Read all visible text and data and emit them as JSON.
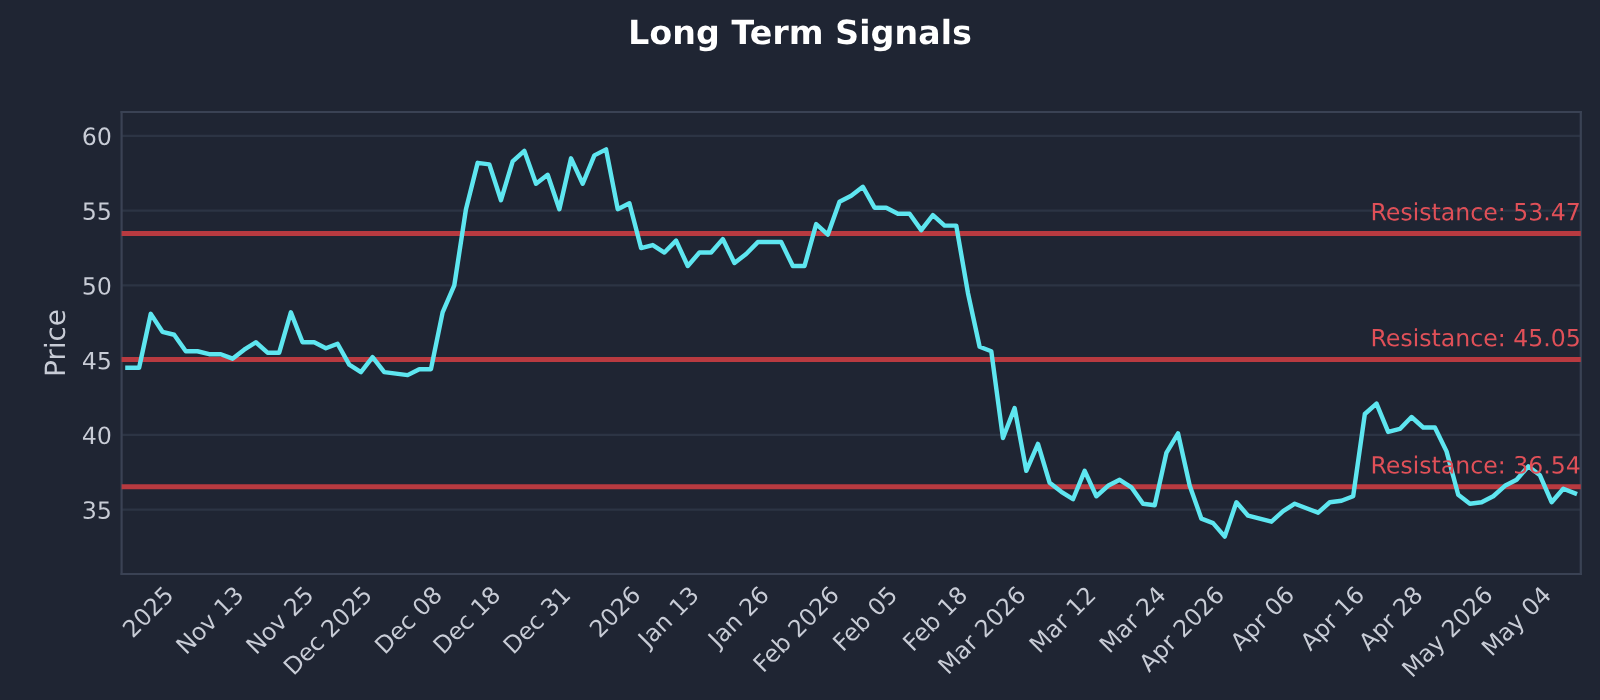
{
  "chart_data": {
    "type": "line",
    "title": "Long Term Signals",
    "ylabel": "Price",
    "categories": [
      null,
      null,
      null,
      "2025",
      null,
      null,
      null,
      null,
      null,
      "Nov 13",
      null,
      null,
      null,
      null,
      null,
      "Nov 25",
      null,
      null,
      null,
      null,
      "Dec 2025",
      null,
      null,
      null,
      null,
      null,
      "Dec 08",
      null,
      null,
      null,
      null,
      "Dec 18",
      null,
      null,
      null,
      null,
      null,
      "Dec 31",
      null,
      null,
      null,
      null,
      null,
      "2026",
      null,
      null,
      null,
      null,
      "Jan 13",
      null,
      null,
      null,
      null,
      null,
      "Jan 26",
      null,
      null,
      null,
      null,
      null,
      "Feb 2026",
      null,
      null,
      null,
      null,
      "Feb 05",
      null,
      null,
      null,
      null,
      null,
      "Feb 18",
      null,
      null,
      null,
      null,
      "Mar 2026",
      null,
      null,
      null,
      null,
      null,
      "Mar 12",
      null,
      null,
      null,
      null,
      null,
      "Mar 24",
      null,
      null,
      null,
      null,
      "Apr 2026",
      null,
      null,
      null,
      null,
      null,
      "Apr 06",
      null,
      null,
      null,
      null,
      null,
      "Apr 16",
      null,
      null,
      null,
      null,
      "Apr 28",
      null,
      null,
      null,
      null,
      null,
      "May 2026",
      null,
      null,
      null,
      null,
      "May 04",
      null,
      null,
      null
    ],
    "series": [
      {
        "color": "#5ee6f0",
        "values": [
          44.5,
          44.5,
          48.1,
          46.9,
          46.7,
          45.6,
          45.6,
          45.4,
          45.4,
          45.1,
          45.7,
          46.2,
          45.5,
          45.5,
          48.2,
          46.2,
          46.2,
          45.8,
          46.1,
          44.7,
          44.2,
          45.2,
          44.2,
          44.1,
          44.0,
          44.4,
          44.4,
          48.2,
          50.0,
          55.1,
          58.2,
          58.1,
          55.7,
          58.3,
          59.0,
          56.8,
          57.4,
          55.1,
          58.5,
          56.8,
          58.7,
          59.1,
          55.1,
          55.5,
          52.5,
          52.7,
          52.2,
          53.0,
          51.3,
          52.2,
          52.2,
          53.1,
          51.5,
          52.1,
          52.9,
          52.9,
          52.9,
          51.3,
          51.3,
          54.1,
          53.4,
          55.6,
          56.0,
          56.6,
          55.2,
          55.2,
          54.8,
          54.8,
          53.7,
          54.7,
          54.0,
          54.0,
          49.5,
          45.9,
          45.6,
          39.8,
          41.8,
          37.6,
          39.4,
          36.8,
          36.2,
          35.7,
          37.6,
          35.9,
          36.6,
          37.0,
          36.5,
          35.4,
          35.3,
          38.8,
          40.1,
          36.6,
          34.4,
          34.1,
          33.2,
          35.5,
          34.6,
          34.4,
          34.2,
          34.9,
          35.4,
          35.1,
          34.8,
          35.5,
          35.6,
          35.9,
          41.4,
          42.1,
          40.2,
          40.4,
          41.2,
          40.5,
          40.5,
          38.9,
          36.0,
          35.4,
          35.5,
          35.9,
          36.6,
          37.0,
          37.9,
          37.3,
          35.5,
          36.4,
          36.1
        ]
      }
    ],
    "ylim": [
      30.7,
      61.6
    ],
    "yticks": [
      35,
      40,
      45,
      50,
      55,
      60
    ],
    "grid": "y",
    "ref_lines": [
      {
        "axis": "y",
        "value": 53.47,
        "label": "Resistance: 53.47",
        "color": "#b83a40"
      },
      {
        "axis": "y",
        "value": 45.05,
        "label": "Resistance: 45.05",
        "color": "#b83a40"
      },
      {
        "axis": "y",
        "value": 36.54,
        "label": "Resistance: 36.54",
        "color": "#b83a40"
      }
    ]
  }
}
